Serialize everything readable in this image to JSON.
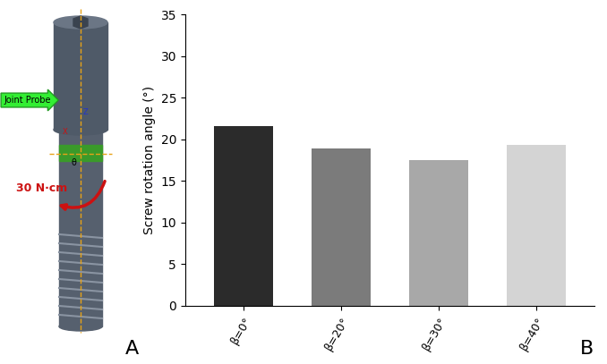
{
  "chart_data": {
    "type": "bar",
    "y_label": "Screw rotation angle (°)",
    "categories": [
      "β=0°",
      "β=20°",
      "β=30°",
      "β=40°"
    ],
    "values": [
      21.6,
      18.9,
      17.5,
      19.3
    ],
    "colors": [
      "#2b2b2b",
      "#7b7b7b",
      "#a8a8a8",
      "#d4d4d4"
    ],
    "ylim": [
      0,
      35
    ],
    "yticks": [
      0,
      5,
      10,
      15,
      20,
      25,
      30,
      35
    ],
    "grid": false
  },
  "illustration": {
    "probe_label": "Joint Probe",
    "torque_label": "30 N·cm",
    "axis_marks": [
      "Z",
      "X",
      "θ"
    ]
  },
  "panel_labels": [
    "A",
    "B"
  ]
}
